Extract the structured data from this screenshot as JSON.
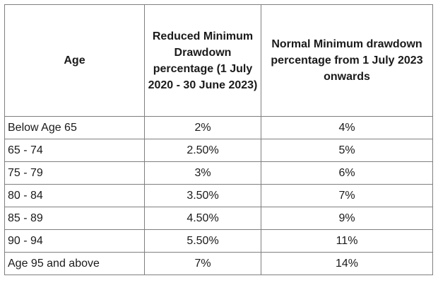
{
  "table": {
    "headers": {
      "age": "Age",
      "reduced": "Reduced Minimum Drawdown percentage (1 July 2020 - 30 June 2023)",
      "normal": "Normal Minimum drawdown percentage from 1 July 2023 onwards"
    },
    "rows": [
      {
        "age": "Below Age 65",
        "reduced": "2%",
        "normal": "4%"
      },
      {
        "age": "65 - 74",
        "reduced": "2.50%",
        "normal": "5%"
      },
      {
        "age": "75 - 79",
        "reduced": "3%",
        "normal": "6%"
      },
      {
        "age": "80 - 84",
        "reduced": "3.50%",
        "normal": "7%"
      },
      {
        "age": "85 - 89",
        "reduced": "4.50%",
        "normal": "9%"
      },
      {
        "age": "90 - 94",
        "reduced": "5.50%",
        "normal": "11%"
      },
      {
        "age": "Age 95 and above",
        "reduced": "7%",
        "normal": "14%"
      }
    ]
  }
}
